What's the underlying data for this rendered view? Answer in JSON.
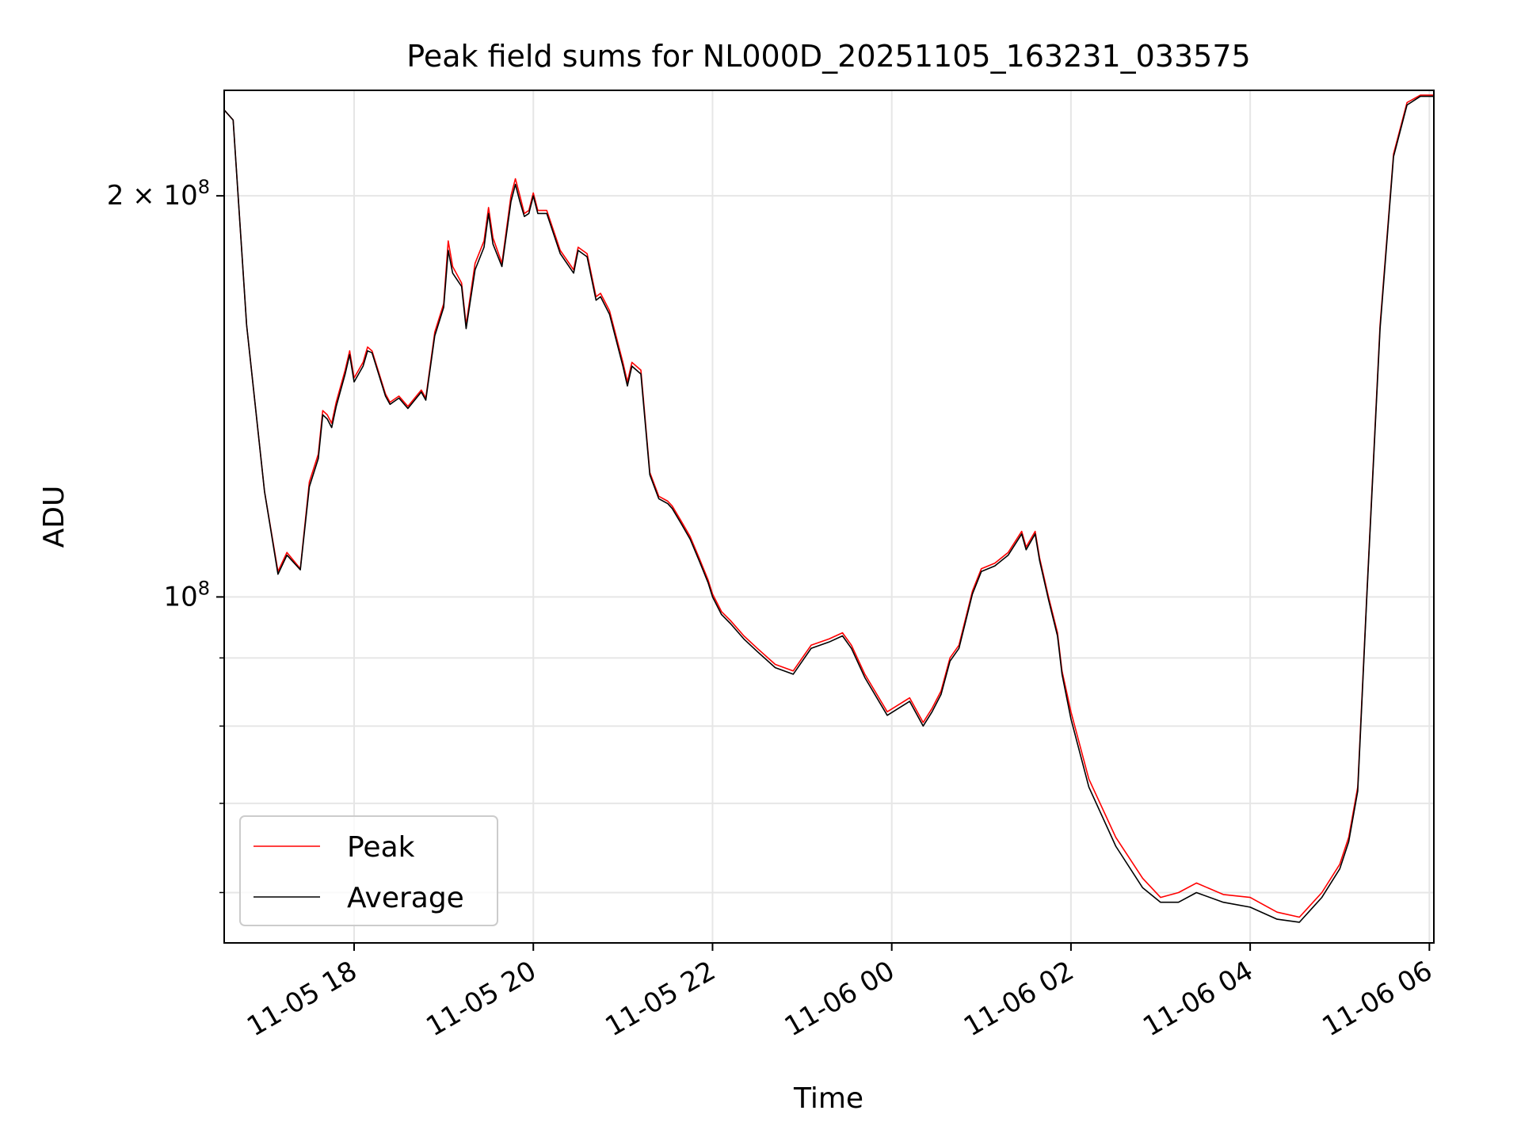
{
  "chart_data": {
    "type": "line",
    "title": "Peak field sums for NL000D_20251105_163231_033575",
    "xlabel": "Time",
    "ylabel": "ADU",
    "y_scale": "log",
    "ylim": [
      55000000,
      240000000
    ],
    "xlim_hours": [
      -1.45,
      12.05
    ],
    "grid": true,
    "legend_position": "lower-left",
    "x_ticks": [
      {
        "hour": 0,
        "label": "11-05 18"
      },
      {
        "hour": 2,
        "label": "11-05 20"
      },
      {
        "hour": 4,
        "label": "11-05 22"
      },
      {
        "hour": 6,
        "label": "11-06 00"
      },
      {
        "hour": 8,
        "label": "11-06 02"
      },
      {
        "hour": 10,
        "label": "11-06 04"
      },
      {
        "hour": 12,
        "label": "11-06 06"
      }
    ],
    "y_major_ticks": [
      {
        "value": 200000000,
        "label_base": "2 × 10",
        "label_exp": "8"
      },
      {
        "value": 100000000,
        "label_base": "10",
        "label_exp": "8"
      }
    ],
    "y_minor_ticks": [
      60000000,
      70000000,
      80000000,
      90000000
    ],
    "series": [
      {
        "name": "Peak",
        "color": "#ff0000",
        "x_hours": [
          -1.45,
          -1.35,
          -1.2,
          -1.0,
          -0.85,
          -0.75,
          -0.6,
          -0.5,
          -0.4,
          -0.35,
          -0.3,
          -0.25,
          -0.2,
          -0.1,
          -0.05,
          0.0,
          0.1,
          0.15,
          0.2,
          0.35,
          0.4,
          0.5,
          0.6,
          0.75,
          0.8,
          0.9,
          1.0,
          1.05,
          1.1,
          1.2,
          1.25,
          1.35,
          1.45,
          1.5,
          1.55,
          1.65,
          1.75,
          1.8,
          1.85,
          1.9,
          1.95,
          2.0,
          2.05,
          2.15,
          2.3,
          2.45,
          2.5,
          2.6,
          2.7,
          2.75,
          2.85,
          3.0,
          3.05,
          3.1,
          3.2,
          3.3,
          3.4,
          3.5,
          3.55,
          3.65,
          3.75,
          3.85,
          3.95,
          4.0,
          4.1,
          4.2,
          4.35,
          4.5,
          4.7,
          4.9,
          5.1,
          5.3,
          5.45,
          5.55,
          5.7,
          5.95,
          6.2,
          6.35,
          6.45,
          6.55,
          6.65,
          6.75,
          6.9,
          7.0,
          7.15,
          7.3,
          7.45,
          7.5,
          7.6,
          7.65,
          7.75,
          7.85,
          7.9,
          8.0,
          8.2,
          8.5,
          8.8,
          9.0,
          9.2,
          9.4,
          9.7,
          10.0,
          10.3,
          10.55,
          10.8,
          11.0,
          11.1,
          11.2,
          11.3,
          11.45,
          11.6,
          11.75,
          11.9,
          12.0,
          12.05
        ],
        "values": [
          232000000,
          228000000,
          160000000,
          120000000,
          104500000,
          108000000,
          105000000,
          122000000,
          128000000,
          138000000,
          137000000,
          135000000,
          140000000,
          148000000,
          153000000,
          146000000,
          150000000,
          154000000,
          153000000,
          142000000,
          140000000,
          141500000,
          139000000,
          143000000,
          141000000,
          158000000,
          166000000,
          185000000,
          177000000,
          172000000,
          160000000,
          178000000,
          185000000,
          196000000,
          186000000,
          178000000,
          200000000,
          206000000,
          200000000,
          194000000,
          195000000,
          201000000,
          195000000,
          195000000,
          182000000,
          176000000,
          183000000,
          181000000,
          168000000,
          169000000,
          164000000,
          150000000,
          145000000,
          150000000,
          148000000,
          124000000,
          119000000,
          118000000,
          117000000,
          114000000,
          111000000,
          107000000,
          103000000,
          100500000,
          97500000,
          96000000,
          93500000,
          91500000,
          89000000,
          88000000,
          92000000,
          93000000,
          94000000,
          92000000,
          87500000,
          82000000,
          84000000,
          80500000,
          82500000,
          85000000,
          90000000,
          92000000,
          101000000,
          105000000,
          106000000,
          108000000,
          112000000,
          109000000,
          112000000,
          107000000,
          100000000,
          94000000,
          88000000,
          82000000,
          73000000,
          66000000,
          61500000,
          59500000,
          60000000,
          61000000,
          59800000,
          59500000,
          58000000,
          57500000,
          60000000,
          63000000,
          66000000,
          72000000,
          100000000,
          160000000,
          215000000,
          235000000,
          238000000,
          238000000,
          238000000
        ]
      },
      {
        "name": "Average",
        "color": "#000000",
        "x_hours": [
          -1.45,
          -1.35,
          -1.2,
          -1.0,
          -0.85,
          -0.75,
          -0.6,
          -0.5,
          -0.4,
          -0.35,
          -0.3,
          -0.25,
          -0.2,
          -0.1,
          -0.05,
          0.0,
          0.1,
          0.15,
          0.2,
          0.35,
          0.4,
          0.5,
          0.6,
          0.75,
          0.8,
          0.9,
          1.0,
          1.05,
          1.1,
          1.2,
          1.25,
          1.35,
          1.45,
          1.5,
          1.55,
          1.65,
          1.75,
          1.8,
          1.85,
          1.9,
          1.95,
          2.0,
          2.05,
          2.15,
          2.3,
          2.45,
          2.5,
          2.6,
          2.7,
          2.75,
          2.85,
          3.0,
          3.05,
          3.1,
          3.2,
          3.3,
          3.4,
          3.5,
          3.55,
          3.65,
          3.75,
          3.85,
          3.95,
          4.0,
          4.1,
          4.2,
          4.35,
          4.5,
          4.7,
          4.9,
          5.1,
          5.3,
          5.45,
          5.55,
          5.7,
          5.95,
          6.2,
          6.35,
          6.45,
          6.55,
          6.65,
          6.75,
          6.9,
          7.0,
          7.15,
          7.3,
          7.45,
          7.5,
          7.6,
          7.65,
          7.75,
          7.85,
          7.9,
          8.0,
          8.2,
          8.5,
          8.8,
          9.0,
          9.2,
          9.4,
          9.7,
          10.0,
          10.3,
          10.55,
          10.8,
          11.0,
          11.1,
          11.2,
          11.3,
          11.45,
          11.6,
          11.75,
          11.9,
          12.0,
          12.05
        ],
        "values": [
          232000000,
          228000000,
          160000000,
          120000000,
          104000000,
          107500000,
          104800000,
          121000000,
          127000000,
          137000000,
          136000000,
          134000000,
          139000000,
          147000000,
          152000000,
          145000000,
          149000000,
          153000000,
          152500000,
          141500000,
          139500000,
          141000000,
          138500000,
          142500000,
          140500000,
          157000000,
          165000000,
          182000000,
          175000000,
          171000000,
          159000000,
          176000000,
          183000000,
          194000000,
          184000000,
          177000000,
          198000000,
          204000000,
          198000000,
          193000000,
          194000000,
          200000000,
          194000000,
          194000000,
          181000000,
          175000000,
          182000000,
          180000000,
          167000000,
          168000000,
          163000000,
          149000000,
          144000000,
          149000000,
          147000000,
          123500000,
          118500000,
          117500000,
          116500000,
          113500000,
          110500000,
          106500000,
          102500000,
          100000000,
          97000000,
          95500000,
          93000000,
          91000000,
          88500000,
          87500000,
          91500000,
          92500000,
          93500000,
          91500000,
          87000000,
          81500000,
          83500000,
          80000000,
          82000000,
          84500000,
          89500000,
          91500000,
          100500000,
          104500000,
          105500000,
          107500000,
          111500000,
          108500000,
          111500000,
          106500000,
          99500000,
          93500000,
          87500000,
          81000000,
          72000000,
          65000000,
          60500000,
          59000000,
          59000000,
          60000000,
          59000000,
          58500000,
          57300000,
          57000000,
          59500000,
          62500000,
          65500000,
          71500000,
          99500000,
          159000000,
          214000000,
          234000000,
          237500000,
          237500000,
          237500000
        ]
      }
    ],
    "legend": [
      {
        "name": "Peak",
        "color": "#ff0000"
      },
      {
        "name": "Average",
        "color": "#000000"
      }
    ]
  }
}
